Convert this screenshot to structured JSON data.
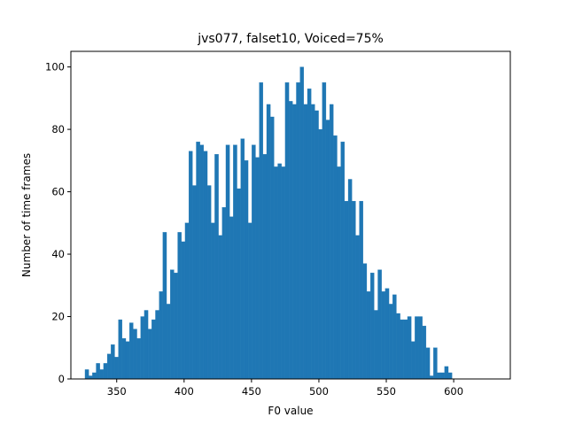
{
  "chart_data": {
    "type": "bar",
    "subtype": "histogram",
    "title": "jvs077, falset10, Voiced=75%",
    "xlabel": "F0 value",
    "ylabel": "Number of time frames",
    "xlim": [
      316,
      642
    ],
    "ylim": [
      0,
      105
    ],
    "xticks": [
      350,
      400,
      450,
      500,
      550,
      600
    ],
    "yticks": [
      0,
      20,
      40,
      60,
      80,
      100
    ],
    "bin_start": 326.5,
    "bin_width": 2.75,
    "color": "#1f77b4",
    "grid": false,
    "legend": "none",
    "counts": [
      3,
      1,
      2,
      5,
      3,
      5,
      8,
      11,
      7,
      19,
      13,
      12,
      18,
      16,
      13,
      20,
      22,
      16,
      19,
      22,
      28,
      47,
      24,
      35,
      34,
      47,
      44,
      50,
      73,
      62,
      76,
      75,
      73,
      62,
      50,
      72,
      46,
      55,
      75,
      52,
      75,
      61,
      77,
      70,
      50,
      75,
      71,
      95,
      72,
      88,
      84,
      68,
      69,
      68,
      95,
      89,
      88,
      95,
      100,
      88,
      93,
      88,
      86,
      80,
      95,
      83,
      88,
      78,
      68,
      76,
      57,
      64,
      57,
      46,
      57,
      37,
      28,
      34,
      22,
      35,
      28,
      29,
      24,
      27,
      21,
      19,
      19,
      20,
      12,
      20,
      20,
      17,
      10,
      1,
      10,
      2,
      2,
      4,
      2
    ]
  }
}
